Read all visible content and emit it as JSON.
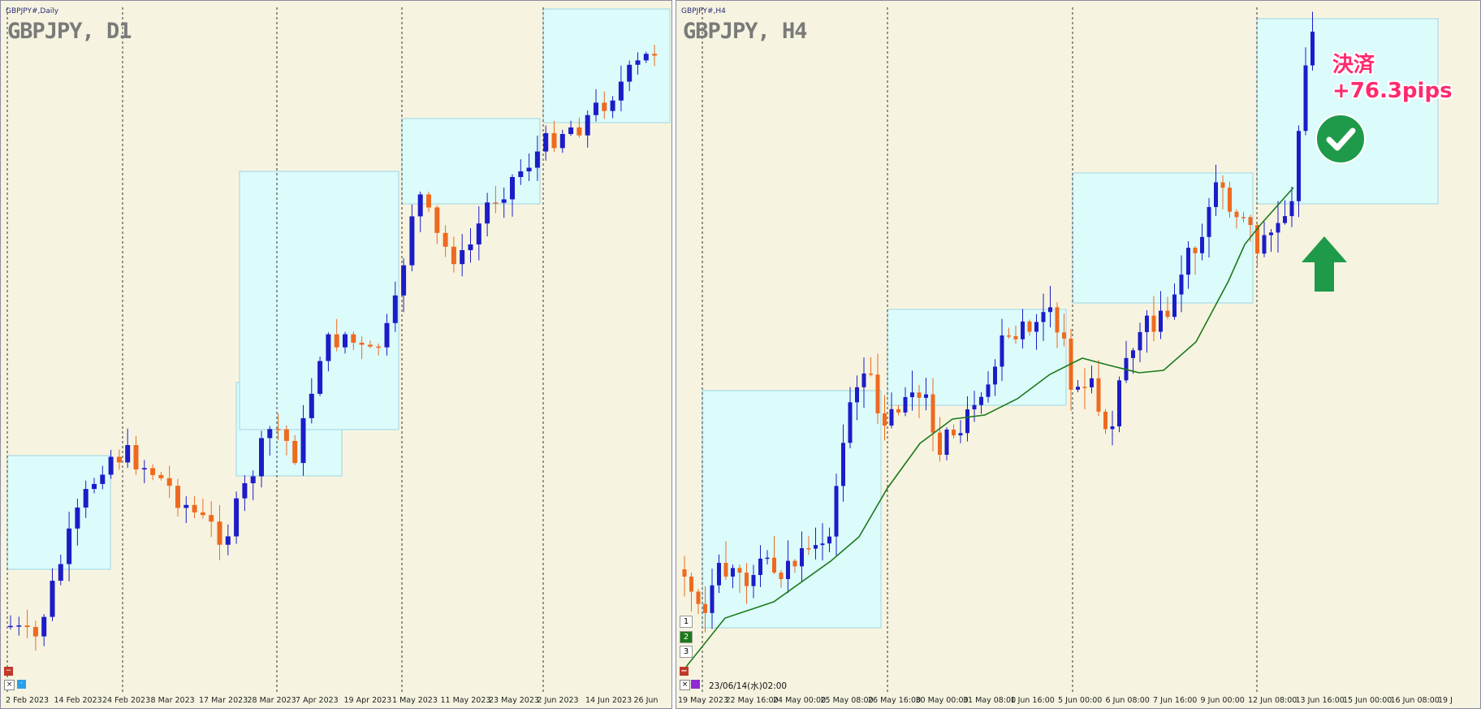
{
  "colors": {
    "background": "#f6f4e0",
    "box": "#dcfbfb",
    "box_border": "#9fd4e6",
    "bull": "#1c1cc8",
    "bear": "#ee6a20",
    "ma": "#1b7a1b",
    "vline": "#333333",
    "annotation": "#ff2a6d",
    "check": "#1f9a4a",
    "arrow": "#1f9a4a"
  },
  "left": {
    "mini_title": "GBPJPY#,Daily",
    "title": "GBPJPY, D1",
    "x_labels": [
      "2 Feb 2023",
      "14 Feb 2023",
      "24 Feb 2023",
      "8 Mar 2023",
      "17 Mar 2023",
      "28 Mar 2023",
      "7 Apr 2023",
      "19 Apr 2023",
      "1 May 2023",
      "11 May 2023",
      "23 May 2023",
      "2 Jun 2023",
      "14 Jun 2023",
      "26 Jun"
    ]
  },
  "right": {
    "mini_title": "GBPJPY#,H4",
    "title": "GBPJPY, H4",
    "x_labels": [
      "19 May 2023",
      "22 May 16:00",
      "24 May 00:00",
      "25 May 08:00",
      "26 May 16:00",
      "30 May 00:00",
      "31 May 08:00",
      "1 Jun 16:00",
      "5 Jun 00:00",
      "6 Jun 08:00",
      "7 Jun 16:00",
      "9 Jun 00:00",
      "12 Jun 08:00",
      "13 Jun 16:00",
      "15 Jun 00:00",
      "16 Jun 08:00",
      "19 J"
    ],
    "cursor_time": "23/06/14(水)02:00",
    "timeframe_buttons": [
      "1",
      "2",
      "3"
    ],
    "annotation_line1": "決済",
    "annotation_line2": "+76.3pips",
    "check_icon": "check-circle-icon",
    "arrow_icon": "up-arrow-icon"
  },
  "controls": {
    "close_glyph": "×",
    "minus_glyph": "−"
  }
}
